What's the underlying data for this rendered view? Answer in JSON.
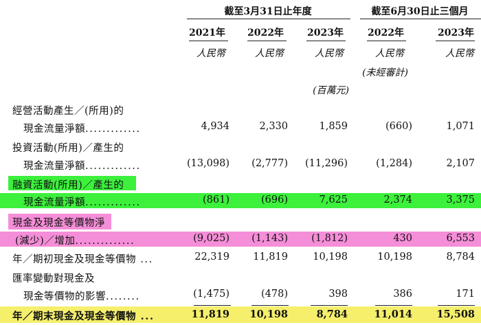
{
  "header": {
    "group1": "截至3月31日止年度",
    "group2": "截至6月30日止三個月",
    "years": [
      "2021年",
      "2022年",
      "2023年",
      "2022年",
      "2023年"
    ],
    "currency": [
      "人民幣",
      "人民幣",
      "人民幣",
      "人民幣",
      "人民幣"
    ],
    "unaudited": "(未經審計)",
    "unit": "(百萬元)"
  },
  "rows": {
    "operating": {
      "line1": "經營活動產生／(所用)的",
      "line2": "現金流量淨額",
      "values": [
        "4,934",
        "2,330",
        "1,859",
        "(660)",
        "1,071"
      ]
    },
    "investing": {
      "line1": "投資活動(所用)／產生的",
      "line2": "現金流量淨額",
      "values": [
        "(13,098)",
        "(2,777)",
        "(11,296)",
        "(1,284)",
        "2,107"
      ]
    },
    "financing": {
      "line1": "融資活動(所用)／產生的",
      "line2": "現金流量淨額",
      "values": [
        "(861)",
        "(696)",
        "7,625",
        "2,374",
        "3,375"
      ]
    },
    "net_change": {
      "line1": "現金及現金等價物淨",
      "line2": "(減少)／增加",
      "values": [
        "(9,025)",
        "(1,143)",
        "(1,812)",
        "430",
        "6,553"
      ]
    },
    "beginning": {
      "line1": "年／期初現金及現金等價物",
      "values": [
        "22,319",
        "11,819",
        "10,198",
        "10,198",
        "8,784"
      ]
    },
    "fx": {
      "line1": "匯率變動對現金及",
      "line2": "現金等價物的影響",
      "values": [
        "(1,475)",
        "(478)",
        "398",
        "386",
        "171"
      ]
    },
    "ending": {
      "line1": "年／期末現金及現金等價物",
      "values": [
        "11,819",
        "10,198",
        "8,784",
        "11,014",
        "15,508"
      ]
    }
  },
  "highlights": {
    "financing_color": "#3cf03c",
    "net_change_color": "#f58ed8",
    "ending_color": "#f5ef6c"
  }
}
